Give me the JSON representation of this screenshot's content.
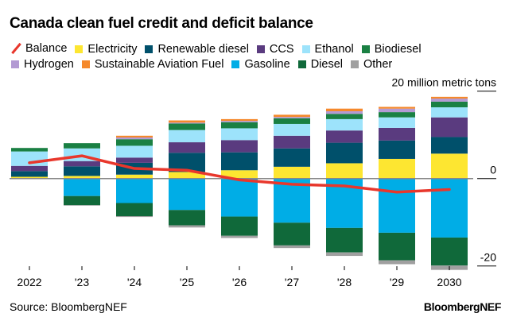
{
  "title": "Canada clean fuel credit and deficit balance",
  "source": "Source: BloombergNEF",
  "brand": "BloombergNEF",
  "chart_data": {
    "type": "bar",
    "stacked": true,
    "title": "Canada clean fuel credit and deficit balance",
    "unit_label": "20 million metric tons",
    "ylabel": "million metric tons",
    "ylim": [
      -21,
      20
    ],
    "yticks": [
      20,
      0,
      -20
    ],
    "ytick_labels": [
      "20 million metric tons",
      "0",
      "-20"
    ],
    "categories": [
      "2022",
      "'23",
      "'24",
      "'25",
      "'26",
      "'27",
      "'28",
      "'29",
      "2030"
    ],
    "legend_position": "top",
    "series": [
      {
        "name": "Electricity",
        "color": "#fde631",
        "values": [
          0.4,
          0.6,
          0.9,
          1.5,
          1.9,
          2.7,
          3.5,
          4.5,
          5.7
        ]
      },
      {
        "name": "Renewable diesel",
        "color": "#00506b",
        "values": [
          1.3,
          2.2,
          2.7,
          4.4,
          4.1,
          4.2,
          4.7,
          4.2,
          3.8
        ]
      },
      {
        "name": "CCS",
        "color": "#5a3b7f",
        "values": [
          1.2,
          1.2,
          1.2,
          2.4,
          2.8,
          2.9,
          2.8,
          2.9,
          4.5
        ]
      },
      {
        "name": "Ethanol",
        "color": "#9de3fb",
        "values": [
          3.3,
          2.9,
          2.7,
          2.8,
          2.7,
          2.7,
          2.6,
          2.4,
          2.3
        ]
      },
      {
        "name": "Biodiesel",
        "color": "#1a8043",
        "values": [
          0.8,
          1.2,
          1.5,
          1.5,
          1.4,
          1.3,
          1.2,
          1.2,
          1.3
        ]
      },
      {
        "name": "Hydrogen",
        "color": "#b39ad3",
        "values": [
          0,
          0,
          0.4,
          0.2,
          0.3,
          0.3,
          0.6,
          0.8,
          0.7
        ]
      },
      {
        "name": "Sustainable Aviation Fuel",
        "color": "#f5892c",
        "values": [
          0,
          0,
          0.4,
          0.5,
          0.4,
          0.5,
          0.6,
          0.4,
          0.4
        ]
      },
      {
        "name": "Gasoline",
        "color": "#00ade6",
        "values": [
          -0.1,
          -4.0,
          -5.6,
          -7.2,
          -8.7,
          -10.1,
          -11.3,
          -12.4,
          -13.5
        ]
      },
      {
        "name": "Diesel",
        "color": "#10693a",
        "values": [
          0,
          -2.1,
          -3.0,
          -3.5,
          -4.4,
          -5.2,
          -5.6,
          -6.3,
          -6.4
        ]
      },
      {
        "name": "Other",
        "color": "#a0a0a0",
        "values": [
          0,
          -0.1,
          -0.2,
          -0.5,
          -0.5,
          -0.6,
          -0.8,
          -0.9,
          -1.0
        ]
      }
    ],
    "line": {
      "name": "Balance",
      "color": "#e8372c",
      "values": [
        3.6,
        5.2,
        2.3,
        1.9,
        -0.3,
        -1.3,
        -1.7,
        -3.1,
        -2.5
      ]
    },
    "legend_order": [
      "Balance",
      "Electricity",
      "Renewable diesel",
      "CCS",
      "Ethanol",
      "Biodiesel",
      "Hydrogen",
      "Sustainable Aviation Fuel",
      "Gasoline",
      "Diesel",
      "Other"
    ]
  }
}
